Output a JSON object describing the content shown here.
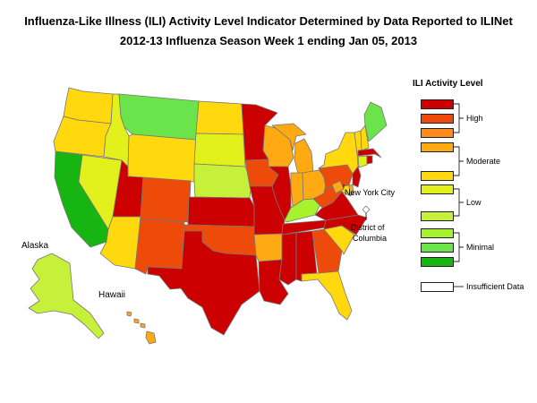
{
  "title": {
    "line1": "Influenza-Like Illness (ILI) Activity Level Indicator Determined by Data Reported to ILINet",
    "line2": "2012-13  Influenza Season Week  1 ending Jan 05, 2013"
  },
  "map_labels": {
    "alaska": "Alaska",
    "hawaii": "Hawaii",
    "nyc": "New York City",
    "dc_line1": "District of",
    "dc_line2": "Columbia"
  },
  "legend": {
    "title": "ILI Activity Level",
    "swatches": [
      "#cc0000",
      "#ee4b0a",
      "#ff8a1d",
      "#ffa913",
      "#ffd80d",
      "#e2f01b",
      "#c6f03a",
      "#a6f22c",
      "#6be34a",
      "#17b512",
      "#ffffff"
    ],
    "groups": [
      "High",
      "Moderate",
      "Low",
      "Minimal",
      "Insufficient Data"
    ]
  },
  "states": {
    "WA": "#ffd80d",
    "OR": "#ffd80d",
    "CA": "#17b512",
    "NV": "#e2f01b",
    "ID": "#e2f01b",
    "MT": "#6be34a",
    "WY": "#ffd80d",
    "UT": "#cc0000",
    "AZ": "#ffd80d",
    "CO": "#ee4b0a",
    "NM": "#ee4b0a",
    "ND": "#ffd80d",
    "SD": "#e2f01b",
    "NE": "#c6f03a",
    "KS": "#cc0000",
    "OK": "#ee4b0a",
    "TX": "#cc0000",
    "MN": "#cc0000",
    "IA": "#ee4b0a",
    "MO": "#cc0000",
    "AR": "#ffa913",
    "LA": "#cc0000",
    "WI": "#ffa913",
    "IL": "#cc0000",
    "MI": "#ffa913",
    "IN": "#ffa913",
    "OH": "#ffa913",
    "KY": "#a6f22c",
    "TN": "#cc0000",
    "MS": "#cc0000",
    "AL": "#cc0000",
    "GA": "#ee4b0a",
    "FL": "#ffd80d",
    "SC": "#ffd80d",
    "NC": "#cc0000",
    "VA": "#cc0000",
    "WV": "#ee4b0a",
    "PA": "#ee4b0a",
    "NY": "#ffd80d",
    "VT": "#ffd80d",
    "NH": "#ffd80d",
    "ME": "#6be34a",
    "MA": "#cc0000",
    "RI": "#cc0000",
    "CT": "#e2f01b",
    "NJ": "#cc0000",
    "DE": "#ffa913",
    "MD": "#ffd80d",
    "AK": "#c6f03a",
    "HI": "#ffa913",
    "NYC": "#ffa913",
    "DC": "#ffffff"
  }
}
